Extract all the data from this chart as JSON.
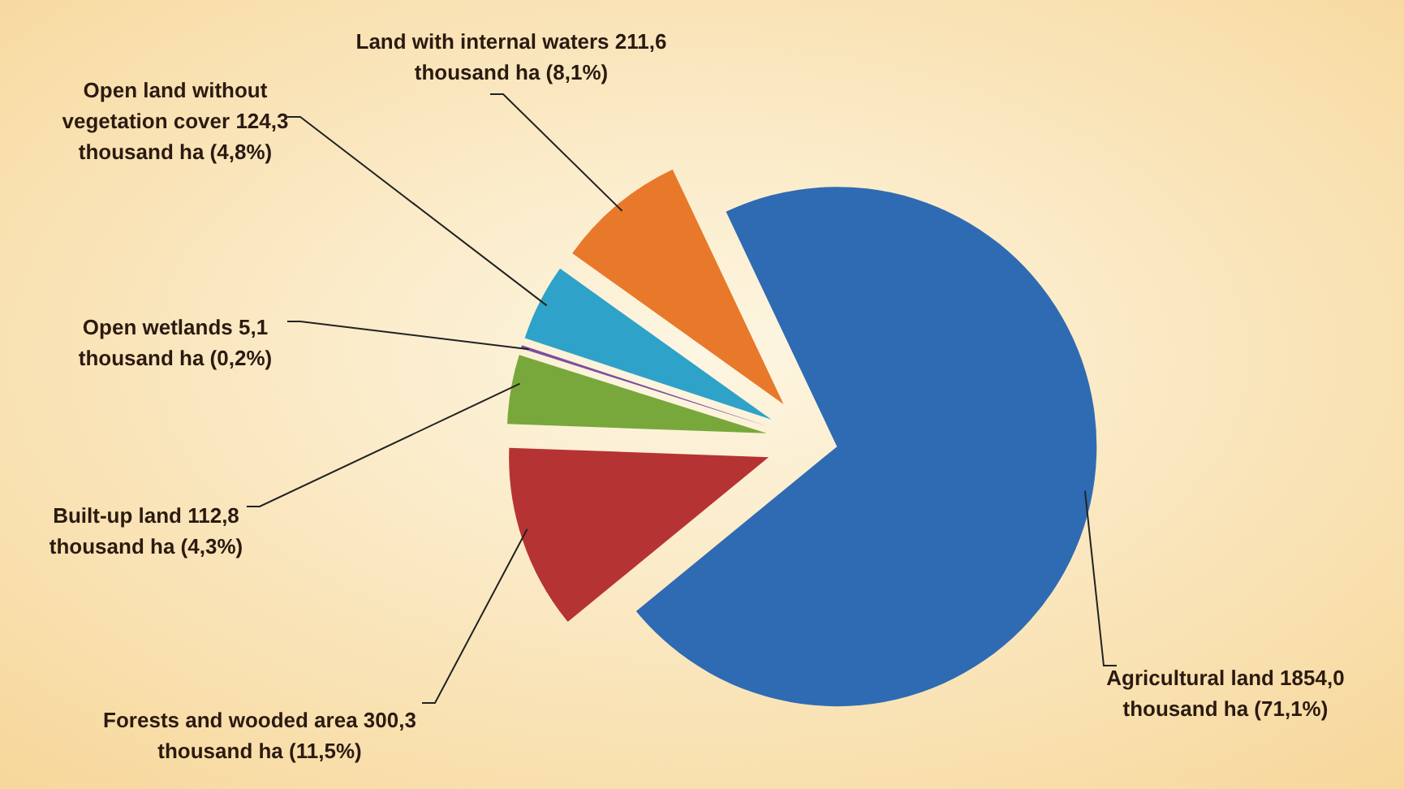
{
  "chart_data": {
    "type": "pie",
    "categories": [
      "Agricultural land",
      "Forests and wooded area",
      "Built-up land",
      "Open wetlands",
      "Open land without vegetation cover",
      "Land with internal waters"
    ],
    "values": [
      71.1,
      11.5,
      4.3,
      0.2,
      4.8,
      8.1
    ],
    "colors": [
      "#2f6bb3",
      "#b63333",
      "#78a83c",
      "#7b4fa0",
      "#2ea2c8",
      "#e8792a"
    ],
    "value_labels": [
      "1854,0 thousand ha (71,1%)",
      "300,3 thousand ha (11,5%)",
      "112,8 thousand ha (4,3%)",
      "5,1 thousand ha (0,2%)",
      "124,3 thousand ha (4,8%)",
      "211,6 thousand ha (8,1%)"
    ]
  }
}
